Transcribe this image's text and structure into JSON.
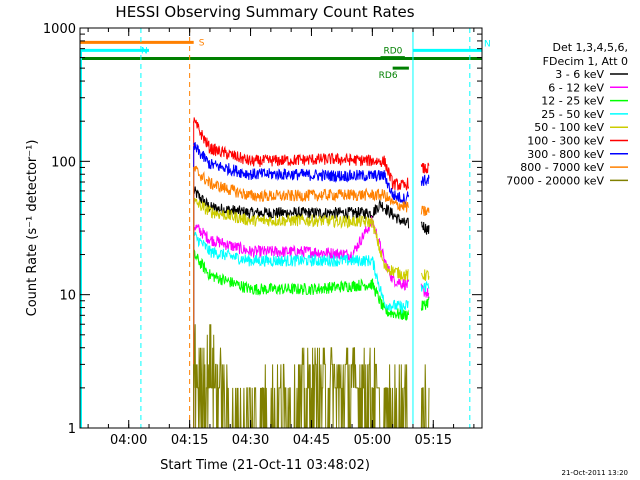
{
  "chart_data": {
    "type": "line",
    "title": "HESSI Observing Summary Count Rates",
    "xlabel": "Start Time (21-Oct-11 03:48:02)",
    "ylabel": "Count Rate (s⁻¹ detector⁻¹)",
    "yscale": "log",
    "ylim": [
      1,
      1000
    ],
    "xlim": [
      "03:48",
      "05:27"
    ],
    "x_ticks": [
      "04:00",
      "04:15",
      "04:30",
      "04:45",
      "05:00",
      "05:15"
    ],
    "y_ticks": [
      "1",
      "10",
      "100",
      "1000"
    ],
    "legend_header": [
      "Det 1,3,4,5,6,",
      "FDecim 1, Att 0"
    ],
    "legend_position": "right",
    "footer_stamp": "21-Oct-2011 13:20",
    "flag_bars": [
      {
        "label": "S",
        "color": "#ff8000",
        "y": 780,
        "start": "03:48",
        "end": "04:16"
      },
      {
        "label": "N",
        "color": "#00ffff",
        "y": 680,
        "start": "03:48",
        "end": "04:05"
      },
      {
        "label": "N",
        "color": "#00ffff",
        "y": 680,
        "start": "05:10",
        "end": "05:27"
      },
      {
        "label": "",
        "color": "#008000",
        "y": 590,
        "start": "03:48",
        "end": "05:27"
      },
      {
        "label": "RD0",
        "color": "#008000",
        "y": 600,
        "start": "05:02",
        "end": "05:08"
      },
      {
        "label": "RD6",
        "color": "#008000",
        "y": 500,
        "start": "05:05",
        "end": "05:09"
      }
    ],
    "vertical_markers": [
      {
        "time": "04:03",
        "color": "#00ffff",
        "style": "dashed"
      },
      {
        "time": "04:15",
        "color": "#ff8000",
        "style": "dashed"
      },
      {
        "time": "05:10",
        "color": "#00ffff",
        "style": "solid"
      },
      {
        "time": "05:24",
        "color": "#00ffff",
        "style": "dashed"
      }
    ],
    "gaps": [
      {
        "start": "03:48",
        "end": "04:15"
      },
      {
        "start": "05:09",
        "end": "05:12"
      },
      {
        "start": "05:15",
        "end": "05:27"
      }
    ],
    "segment_breaks": [
      "05:03",
      "05:09",
      "05:12",
      "05:15"
    ],
    "series": [
      {
        "name": "3 - 6 keV",
        "color": "#000000",
        "points": [
          [
            "04:16",
            60
          ],
          [
            "04:20",
            45
          ],
          [
            "04:30",
            41
          ],
          [
            "04:45",
            41
          ],
          [
            "05:00",
            41
          ],
          [
            "05:02",
            48
          ],
          [
            "05:05",
            40
          ],
          [
            "05:08",
            34
          ],
          [
            "05:12",
            34
          ],
          [
            "05:14",
            30
          ]
        ]
      },
      {
        "name": "6 - 12 keV",
        "color": "#ff00ff",
        "points": [
          [
            "04:16",
            33
          ],
          [
            "04:20",
            26
          ],
          [
            "04:30",
            21
          ],
          [
            "04:45",
            21
          ],
          [
            "04:55",
            20
          ],
          [
            "05:00",
            36
          ],
          [
            "05:03",
            18
          ],
          [
            "05:05",
            13
          ],
          [
            "05:08",
            12
          ],
          [
            "05:12",
            11
          ],
          [
            "05:14",
            10
          ]
        ]
      },
      {
        "name": "12 - 25 keV",
        "color": "#00ff00",
        "points": [
          [
            "04:16",
            20
          ],
          [
            "04:20",
            14
          ],
          [
            "04:30",
            11
          ],
          [
            "04:45",
            11
          ],
          [
            "05:00",
            12
          ],
          [
            "05:03",
            7.5
          ],
          [
            "05:08",
            7
          ],
          [
            "05:12",
            8
          ],
          [
            "05:14",
            9
          ]
        ]
      },
      {
        "name": "25 - 50 keV",
        "color": "#00ffff",
        "points": [
          [
            "04:16",
            28
          ],
          [
            "04:20",
            21
          ],
          [
            "04:30",
            18
          ],
          [
            "04:45",
            18
          ],
          [
            "05:00",
            18
          ],
          [
            "05:03",
            8.5
          ],
          [
            "05:08",
            8
          ],
          [
            "05:12",
            11
          ],
          [
            "05:14",
            12
          ]
        ]
      },
      {
        "name": "50 - 100 keV",
        "color": "#cccc00",
        "points": [
          [
            "04:16",
            50
          ],
          [
            "04:20",
            42
          ],
          [
            "04:30",
            36
          ],
          [
            "04:45",
            36
          ],
          [
            "05:00",
            35
          ],
          [
            "05:03",
            16
          ],
          [
            "05:08",
            14
          ],
          [
            "05:12",
            14
          ],
          [
            "05:14",
            14
          ]
        ]
      },
      {
        "name": "100 - 300 keV",
        "color": "#ff0000",
        "points": [
          [
            "04:16",
            200
          ],
          [
            "04:20",
            125
          ],
          [
            "04:30",
            100
          ],
          [
            "04:40",
            102
          ],
          [
            "04:50",
            104
          ],
          [
            "05:03",
            100
          ],
          [
            "05:05",
            68
          ],
          [
            "05:08",
            65
          ],
          [
            "05:12",
            88
          ],
          [
            "05:14",
            88
          ]
        ]
      },
      {
        "name": "300 - 800 keV",
        "color": "#0000ff",
        "points": [
          [
            "04:16",
            130
          ],
          [
            "04:20",
            95
          ],
          [
            "04:30",
            80
          ],
          [
            "04:40",
            80
          ],
          [
            "04:50",
            78
          ],
          [
            "05:03",
            78
          ],
          [
            "05:05",
            56
          ],
          [
            "05:08",
            52
          ],
          [
            "05:12",
            72
          ],
          [
            "05:14",
            72
          ]
        ]
      },
      {
        "name": "800 - 7000 keV",
        "color": "#ff8000",
        "points": [
          [
            "04:16",
            88
          ],
          [
            "04:20",
            68
          ],
          [
            "04:30",
            55
          ],
          [
            "04:40",
            55
          ],
          [
            "04:50",
            56
          ],
          [
            "05:03",
            56
          ],
          [
            "05:05",
            48
          ],
          [
            "05:08",
            46
          ],
          [
            "05:12",
            42
          ],
          [
            "05:14",
            42
          ]
        ]
      },
      {
        "name": "7000 - 20000 keV",
        "color": "#808000",
        "points": [
          [
            "04:16",
            3
          ],
          [
            "04:18",
            2
          ],
          [
            "04:20",
            3
          ],
          [
            "04:25",
            1
          ],
          [
            "04:50",
            2
          ],
          [
            "04:55",
            2
          ],
          [
            "05:00",
            2
          ],
          [
            "05:02",
            1
          ],
          [
            "05:12",
            2
          ],
          [
            "05:14",
            1
          ]
        ]
      }
    ]
  }
}
